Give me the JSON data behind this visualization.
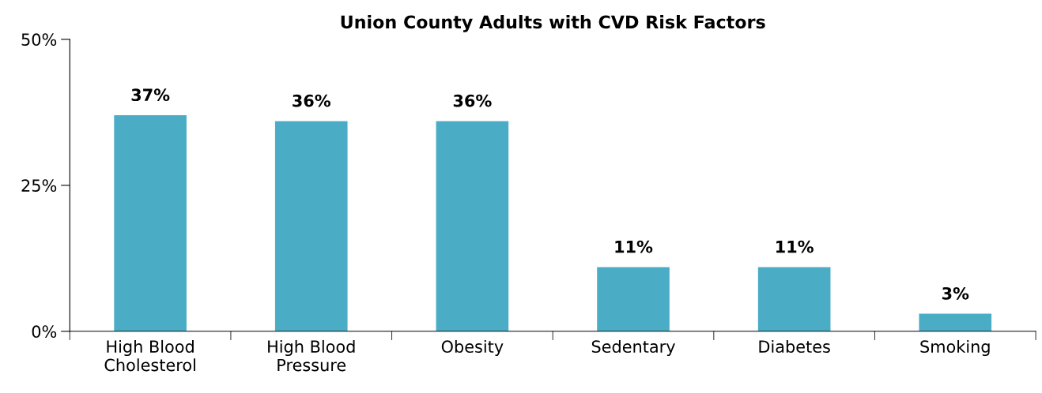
{
  "chart_data": {
    "type": "bar",
    "title": "Union County Adults with CVD Risk Factors",
    "categories": [
      "High Blood\nCholesterol",
      "High Blood\nPressure",
      "Obesity",
      "Sedentary",
      "Diabetes",
      "Smoking"
    ],
    "values": [
      37,
      36,
      36,
      11,
      11,
      3
    ],
    "value_labels": [
      "37%",
      "36%",
      "36%",
      "11%",
      "11%",
      "3%"
    ],
    "color": "#4bacc6",
    "ylim": [
      0,
      50
    ],
    "yticks": [
      {
        "value": 0,
        "label": "0%"
      },
      {
        "value": 25,
        "label": "25%"
      },
      {
        "value": 50,
        "label": "50%"
      }
    ],
    "grid": false
  }
}
